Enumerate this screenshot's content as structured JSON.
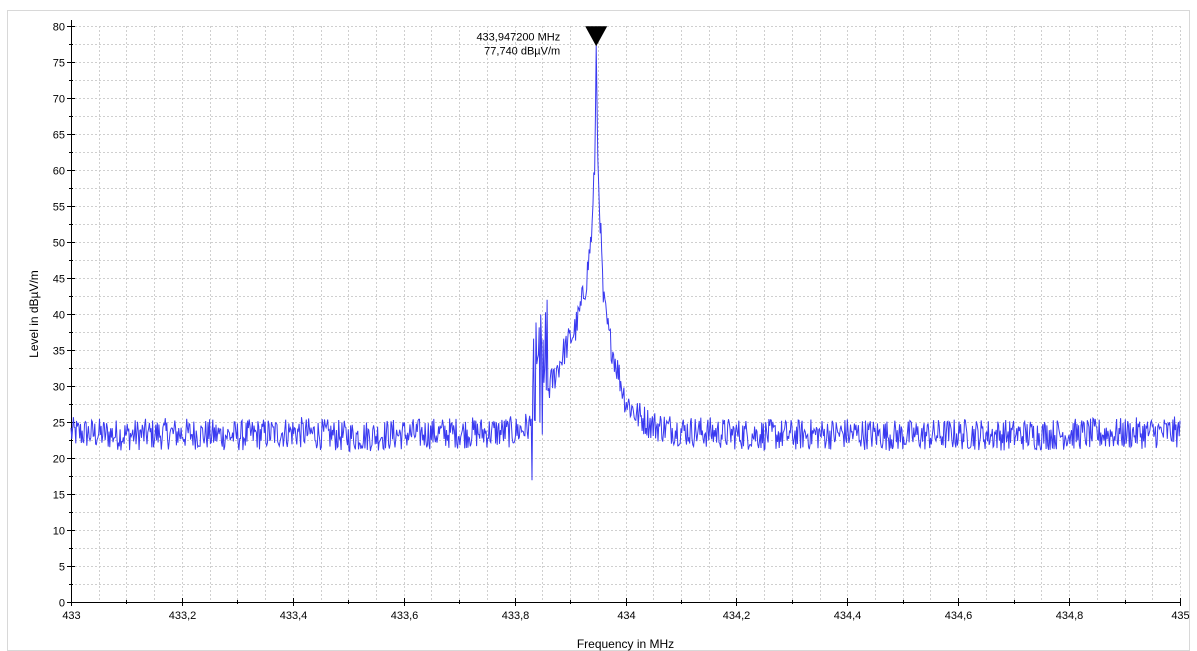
{
  "chart_data": {
    "type": "line",
    "title": "",
    "xlabel": "Frequency in MHz",
    "ylabel": "Level in dBµV/m",
    "xlim": [
      433.0,
      435.0
    ],
    "ylim": [
      0,
      80
    ],
    "x_ticks": [
      433.0,
      433.2,
      433.4,
      433.6,
      433.8,
      434.0,
      434.2,
      434.4,
      434.6,
      434.8,
      435.0
    ],
    "x_tick_labels": [
      "433",
      "433,2",
      "433,4",
      "433,6",
      "433,8",
      "434",
      "434,2",
      "434,4",
      "434,6",
      "434,8",
      "435"
    ],
    "y_ticks": [
      0,
      5,
      10,
      15,
      20,
      25,
      30,
      35,
      40,
      45,
      50,
      55,
      60,
      65,
      70,
      75,
      80
    ],
    "y_tick_labels": [
      "0",
      "5",
      "10",
      "15",
      "20",
      "25",
      "30",
      "35",
      "40",
      "45",
      "50",
      "55",
      "60",
      "65",
      "70",
      "75",
      "80"
    ],
    "grid": true,
    "series": [
      {
        "color": "#3a3af0",
        "x": [
          433.0,
          433.1,
          433.2,
          433.3,
          433.4,
          433.5,
          433.6,
          433.7,
          433.8,
          433.83,
          433.85,
          433.87,
          433.89,
          433.91,
          433.92,
          433.93,
          433.94,
          433.945,
          433.9472,
          433.95,
          433.955,
          433.96,
          433.97,
          433.98,
          433.99,
          434.0,
          434.02,
          434.05,
          434.1,
          434.2,
          434.3,
          434.4,
          434.5,
          434.6,
          434.7,
          434.8,
          434.9,
          435.0
        ],
        "y": [
          23.5,
          23.2,
          23.4,
          23.1,
          23.6,
          23.0,
          23.3,
          23.5,
          23.6,
          24.5,
          28,
          31,
          35,
          38,
          41,
          45,
          52,
          62,
          77.74,
          61,
          52,
          42,
          37,
          34,
          31,
          28,
          26,
          24.5,
          23.8,
          23.3,
          23.2,
          23.4,
          23.1,
          23.3,
          23.2,
          23.3,
          23.4,
          23.6
        ]
      }
    ],
    "marker": {
      "x": 433.9472,
      "y": 77.74,
      "label_frequency": "433,947200 MHz",
      "label_level": "77,740 dBµV/m"
    }
  }
}
